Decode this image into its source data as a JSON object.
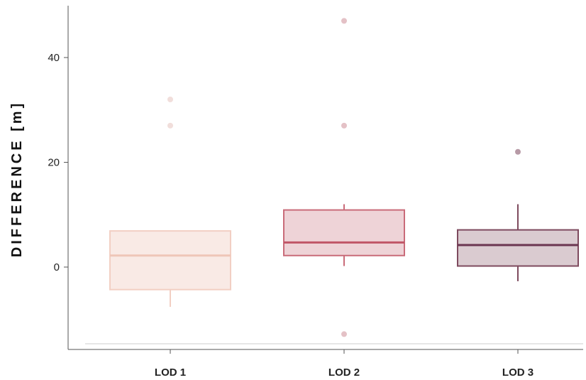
{
  "chart_data": {
    "type": "boxplot",
    "title": "",
    "xlabel": "",
    "ylabel": "DIFFERENCE [m]",
    "ylim": [
      -15,
      50
    ],
    "yticks": [
      0,
      20,
      40
    ],
    "grid": false,
    "legend": "none",
    "categories": [
      "LOD 1",
      "LOD 2",
      "LOD 3"
    ],
    "boxes": [
      {
        "category": "LOD 1",
        "whisker_low": -7.6,
        "q1": -4.3,
        "median": 2.2,
        "q3": 6.9,
        "whisker_high": 6.9,
        "outliers": [
          27,
          32
        ],
        "fill": "#f9eae5",
        "stroke": "#f2cfc3",
        "median_color": "#efc6b8",
        "outlier_color": "#f1dedb"
      },
      {
        "category": "LOD 2",
        "whisker_low": 0.2,
        "q1": 2.2,
        "median": 4.7,
        "q3": 10.9,
        "whisker_high": 12,
        "outliers": [
          -12.8,
          27,
          47
        ],
        "fill": "#eed3d7",
        "stroke": "#c96b79",
        "median_color": "#c05667",
        "outlier_color": "#e4c1c6"
      },
      {
        "category": "LOD 3",
        "whisker_low": -2.7,
        "q1": 0.2,
        "median": 4.2,
        "q3": 7.1,
        "whisker_high": 12,
        "outliers": [
          22
        ],
        "fill": "#dacbd0",
        "stroke": "#7e4a5e",
        "median_color": "#6a3550",
        "outlier_color": "#b79aa6"
      }
    ]
  }
}
